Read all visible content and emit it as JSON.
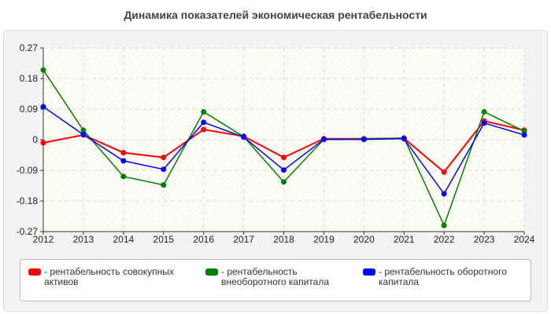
{
  "chart_data": {
    "type": "line",
    "title": "Динамика показателей экономическая рентабельности",
    "x": [
      "2012",
      "2013",
      "2014",
      "2015",
      "2016",
      "2017",
      "2018",
      "2019",
      "2020",
      "2021",
      "2022",
      "2023",
      "2024"
    ],
    "ylim": [
      -0.27,
      0.27
    ],
    "yticks": [
      "0.27",
      "0.18",
      "0.09",
      "0",
      "-0.09",
      "-0.18",
      "-0.27"
    ],
    "grid": true,
    "legend_position": "bottom",
    "series": [
      {
        "name": "- рентабельность совокупных активов",
        "color": "#ff0000",
        "values": [
          -0.009,
          0.014,
          -0.038,
          -0.052,
          0.03,
          0.01,
          -0.052,
          0.003,
          0.003,
          0.004,
          -0.095,
          0.055,
          0.028
        ]
      },
      {
        "name": "- рентабельность внеоборотного капитала",
        "color": "#008000",
        "values": [
          0.205,
          0.028,
          -0.108,
          -0.133,
          0.082,
          0.009,
          -0.124,
          0.001,
          0.002,
          0.005,
          -0.252,
          0.082,
          0.025
        ]
      },
      {
        "name": "- рентабельность оборотного капитала",
        "color": "#0000ff",
        "values": [
          0.097,
          0.015,
          -0.062,
          -0.087,
          0.051,
          0.008,
          -0.089,
          0.001,
          0.001,
          0.003,
          -0.159,
          0.049,
          0.014
        ]
      }
    ]
  }
}
